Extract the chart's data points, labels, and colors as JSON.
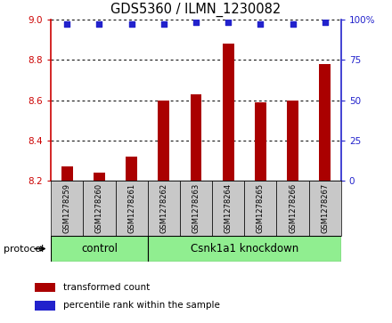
{
  "title": "GDS5360 / ILMN_1230082",
  "samples": [
    "GSM1278259",
    "GSM1278260",
    "GSM1278261",
    "GSM1278262",
    "GSM1278263",
    "GSM1278264",
    "GSM1278265",
    "GSM1278266",
    "GSM1278267"
  ],
  "bar_values": [
    8.27,
    8.24,
    8.32,
    8.6,
    8.63,
    8.88,
    8.59,
    8.6,
    8.78
  ],
  "percentile_values": [
    97,
    97,
    97,
    97,
    98,
    98,
    97,
    97,
    98
  ],
  "ymin": 8.2,
  "ymax": 9.0,
  "yticks_left": [
    8.2,
    8.4,
    8.6,
    8.8,
    9.0
  ],
  "yticks_right": [
    0,
    25,
    50,
    75,
    100
  ],
  "bar_color": "#AA0000",
  "dot_color": "#2222CC",
  "left_axis_color": "#CC0000",
  "right_axis_color": "#2222CC",
  "grid_color": "#000000",
  "control_label": "control",
  "knockdown_label": "Csnk1a1 knockdown",
  "protocol_label": "protocol",
  "legend_bar_label": "transformed count",
  "legend_dot_label": "percentile rank within the sample",
  "group_bg_color": "#90EE90",
  "sample_bg_color": "#C8C8C8",
  "n_control": 3,
  "n_knockdown": 6
}
